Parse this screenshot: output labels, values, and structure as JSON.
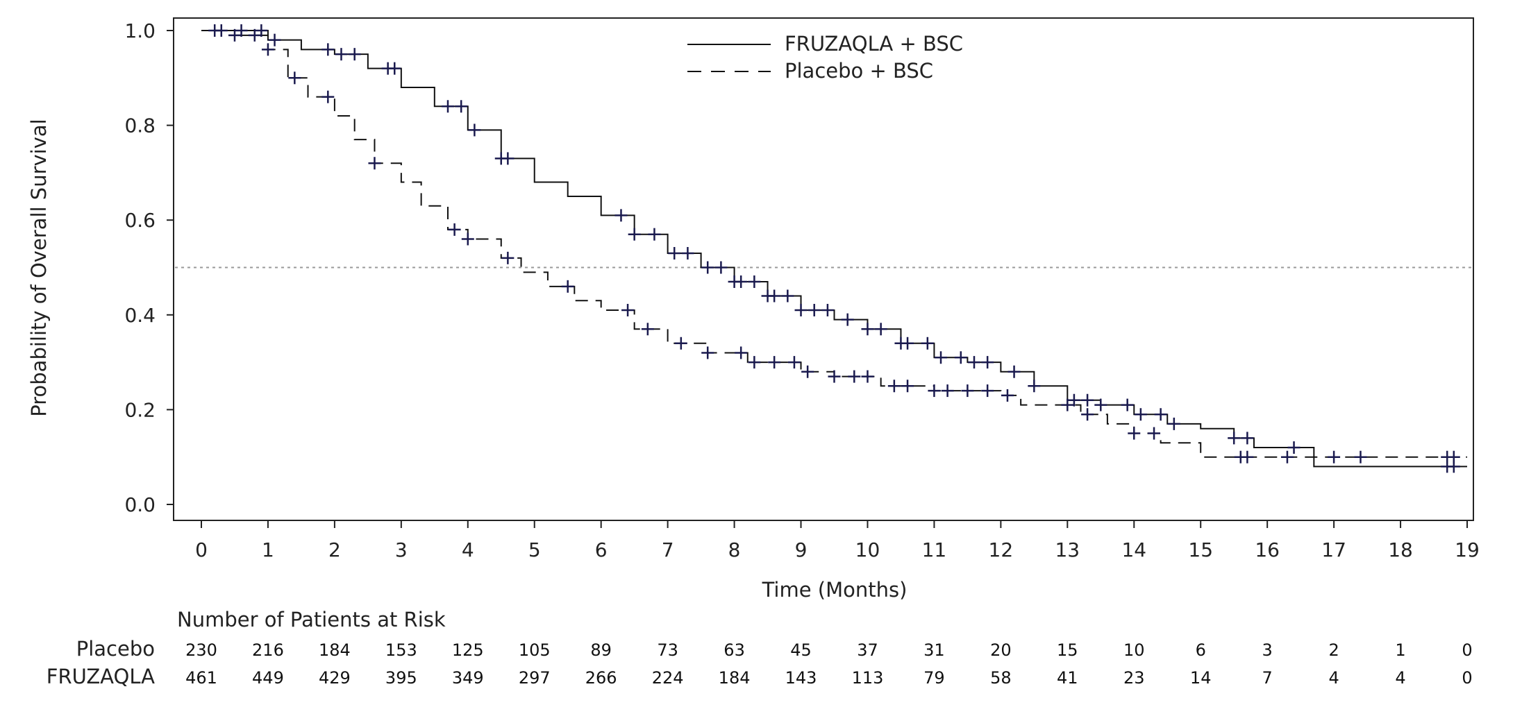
{
  "chart_data": {
    "type": "line",
    "title": "",
    "xlabel": "Time (Months)",
    "ylabel": "Probability of Overall Survival",
    "xlim": [
      0,
      19
    ],
    "ylim": [
      0,
      1
    ],
    "x_ticks": [
      "0",
      "1",
      "2",
      "3",
      "4",
      "5",
      "6",
      "7",
      "8",
      "9",
      "10",
      "11",
      "12",
      "13",
      "14",
      "15",
      "16",
      "17",
      "18",
      "19"
    ],
    "y_ticks": [
      "0.0",
      "0.2",
      "0.4",
      "0.6",
      "0.8",
      "1.0"
    ],
    "reference_line": {
      "y": 0.5,
      "style": "dotted"
    },
    "legend": {
      "placement": "top-center"
    },
    "grid": false,
    "colors": {
      "line": "#111111",
      "censor": "#1a1a4e",
      "axis": "#222222",
      "ref": "#999999"
    },
    "series": [
      {
        "name": "FRUZAQLA + BSC",
        "style": "solid",
        "steps": [
          [
            0,
            1.0
          ],
          [
            0.6,
            1.0
          ],
          [
            1.0,
            0.98
          ],
          [
            1.5,
            0.96
          ],
          [
            2.0,
            0.95
          ],
          [
            2.5,
            0.92
          ],
          [
            3.0,
            0.88
          ],
          [
            3.5,
            0.84
          ],
          [
            4.0,
            0.79
          ],
          [
            4.5,
            0.73
          ],
          [
            5.0,
            0.68
          ],
          [
            5.5,
            0.65
          ],
          [
            6.0,
            0.61
          ],
          [
            6.5,
            0.57
          ],
          [
            7.0,
            0.53
          ],
          [
            7.5,
            0.5
          ],
          [
            8.0,
            0.47
          ],
          [
            8.5,
            0.44
          ],
          [
            9.0,
            0.41
          ],
          [
            9.5,
            0.39
          ],
          [
            10.0,
            0.37
          ],
          [
            10.5,
            0.34
          ],
          [
            11.0,
            0.31
          ],
          [
            11.5,
            0.3
          ],
          [
            12.0,
            0.28
          ],
          [
            12.5,
            0.25
          ],
          [
            13.0,
            0.22
          ],
          [
            13.5,
            0.21
          ],
          [
            14.0,
            0.19
          ],
          [
            14.5,
            0.17
          ],
          [
            15.0,
            0.16
          ],
          [
            15.5,
            0.14
          ],
          [
            15.8,
            0.12
          ],
          [
            16.7,
            0.08
          ],
          [
            19.0,
            0.08
          ]
        ],
        "censor_x": [
          0.2,
          0.6,
          0.9,
          1.1,
          1.9,
          2.1,
          2.3,
          2.8,
          2.9,
          3.7,
          3.9,
          4.1,
          4.5,
          4.6,
          6.3,
          6.5,
          6.8,
          7.1,
          7.3,
          7.6,
          7.8,
          8.0,
          8.1,
          8.3,
          8.5,
          8.6,
          8.8,
          9.0,
          9.2,
          9.4,
          9.7,
          10.0,
          10.2,
          10.5,
          10.6,
          10.9,
          11.1,
          11.4,
          11.6,
          11.8,
          12.2,
          12.5,
          13.1,
          13.3,
          13.5,
          13.9,
          14.1,
          14.4,
          14.6,
          15.5,
          15.7,
          16.4,
          18.7,
          18.8
        ]
      },
      {
        "name": "Placebo + BSC",
        "style": "dashed",
        "steps": [
          [
            0,
            1.0
          ],
          [
            0.5,
            0.99
          ],
          [
            1.0,
            0.96
          ],
          [
            1.3,
            0.9
          ],
          [
            1.6,
            0.86
          ],
          [
            2.0,
            0.82
          ],
          [
            2.3,
            0.77
          ],
          [
            2.6,
            0.72
          ],
          [
            3.0,
            0.68
          ],
          [
            3.3,
            0.63
          ],
          [
            3.7,
            0.58
          ],
          [
            4.0,
            0.56
          ],
          [
            4.5,
            0.52
          ],
          [
            4.8,
            0.49
          ],
          [
            5.2,
            0.46
          ],
          [
            5.6,
            0.43
          ],
          [
            6.0,
            0.41
          ],
          [
            6.5,
            0.37
          ],
          [
            7.0,
            0.34
          ],
          [
            7.6,
            0.32
          ],
          [
            8.2,
            0.3
          ],
          [
            9.0,
            0.28
          ],
          [
            9.5,
            0.27
          ],
          [
            10.2,
            0.25
          ],
          [
            11.0,
            0.24
          ],
          [
            12.0,
            0.23
          ],
          [
            12.3,
            0.21
          ],
          [
            13.2,
            0.19
          ],
          [
            13.6,
            0.17
          ],
          [
            14.0,
            0.15
          ],
          [
            14.4,
            0.13
          ],
          [
            15.0,
            0.1
          ],
          [
            19.0,
            0.1
          ]
        ],
        "censor_x": [
          0.3,
          0.5,
          0.8,
          1.0,
          1.4,
          1.9,
          2.6,
          3.8,
          4.0,
          4.6,
          5.5,
          6.4,
          6.7,
          7.2,
          7.6,
          8.1,
          8.3,
          8.6,
          8.9,
          9.1,
          9.5,
          9.8,
          10.0,
          10.4,
          10.6,
          11.0,
          11.2,
          11.5,
          11.8,
          12.1,
          13.0,
          13.3,
          14.0,
          14.3,
          15.6,
          15.7,
          16.3,
          17.0,
          17.4,
          18.7,
          18.8
        ]
      }
    ]
  },
  "risk_table": {
    "title": "Number of Patients at Risk",
    "rows": [
      {
        "label": "Placebo",
        "values": [
          "230",
          "216",
          "184",
          "153",
          "125",
          "105",
          "89",
          "73",
          "63",
          "45",
          "37",
          "31",
          "20",
          "15",
          "10",
          "6",
          "3",
          "2",
          "1",
          "0"
        ]
      },
      {
        "label": "FRUZAQLA",
        "values": [
          "461",
          "449",
          "429",
          "395",
          "349",
          "297",
          "266",
          "224",
          "184",
          "143",
          "113",
          "79",
          "58",
          "41",
          "23",
          "14",
          "7",
          "4",
          "4",
          "0"
        ]
      }
    ]
  }
}
